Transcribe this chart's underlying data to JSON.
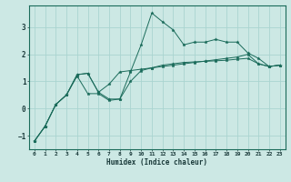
{
  "xlabel": "Humidex (Indice chaleur)",
  "bg_color": "#cce8e4",
  "grid_color": "#aad4d0",
  "line_color": "#1a6b5a",
  "xlim": [
    -0.5,
    23.5
  ],
  "ylim": [
    -1.5,
    3.8
  ],
  "yticks": [
    -1,
    0,
    1,
    2,
    3
  ],
  "xticks": [
    0,
    1,
    2,
    3,
    4,
    5,
    6,
    7,
    8,
    9,
    10,
    11,
    12,
    13,
    14,
    15,
    16,
    17,
    18,
    19,
    20,
    21,
    22,
    23
  ],
  "lines": [
    {
      "x": [
        0,
        1,
        2,
        3,
        4,
        5,
        6,
        7,
        8,
        9,
        10,
        11,
        12,
        13,
        14,
        15,
        16,
        17,
        18,
        19,
        20,
        21,
        22,
        23
      ],
      "y": [
        -1.2,
        -0.65,
        0.15,
        0.5,
        1.2,
        0.55,
        0.55,
        0.3,
        0.35,
        1.35,
        2.35,
        3.52,
        3.2,
        2.9,
        2.35,
        2.45,
        2.45,
        2.55,
        2.45,
        2.45,
        2.05,
        1.85,
        1.55,
        1.6
      ]
    },
    {
      "x": [
        0,
        1,
        2,
        3,
        4,
        5,
        6,
        7,
        8,
        9,
        10,
        11,
        12,
        13,
        14,
        15,
        16,
        17,
        18,
        19,
        20,
        21,
        22,
        23
      ],
      "y": [
        -1.2,
        -0.65,
        0.15,
        0.5,
        1.25,
        1.3,
        0.6,
        0.9,
        1.35,
        1.4,
        1.45,
        1.5,
        1.55,
        1.6,
        1.65,
        1.7,
        1.75,
        1.8,
        1.85,
        1.9,
        2.0,
        1.65,
        1.55,
        1.6
      ]
    },
    {
      "x": [
        0,
        1,
        2,
        3,
        4,
        5,
        6,
        7,
        8,
        9,
        10,
        11,
        12,
        13,
        14,
        15,
        16,
        17,
        18,
        19,
        20,
        21,
        22,
        23
      ],
      "y": [
        -1.2,
        -0.65,
        0.15,
        0.5,
        1.25,
        1.3,
        0.6,
        0.35,
        0.35,
        1.0,
        1.4,
        1.5,
        1.6,
        1.65,
        1.7,
        1.72,
        1.74,
        1.76,
        1.78,
        1.82,
        1.85,
        1.65,
        1.55,
        1.6
      ]
    }
  ]
}
